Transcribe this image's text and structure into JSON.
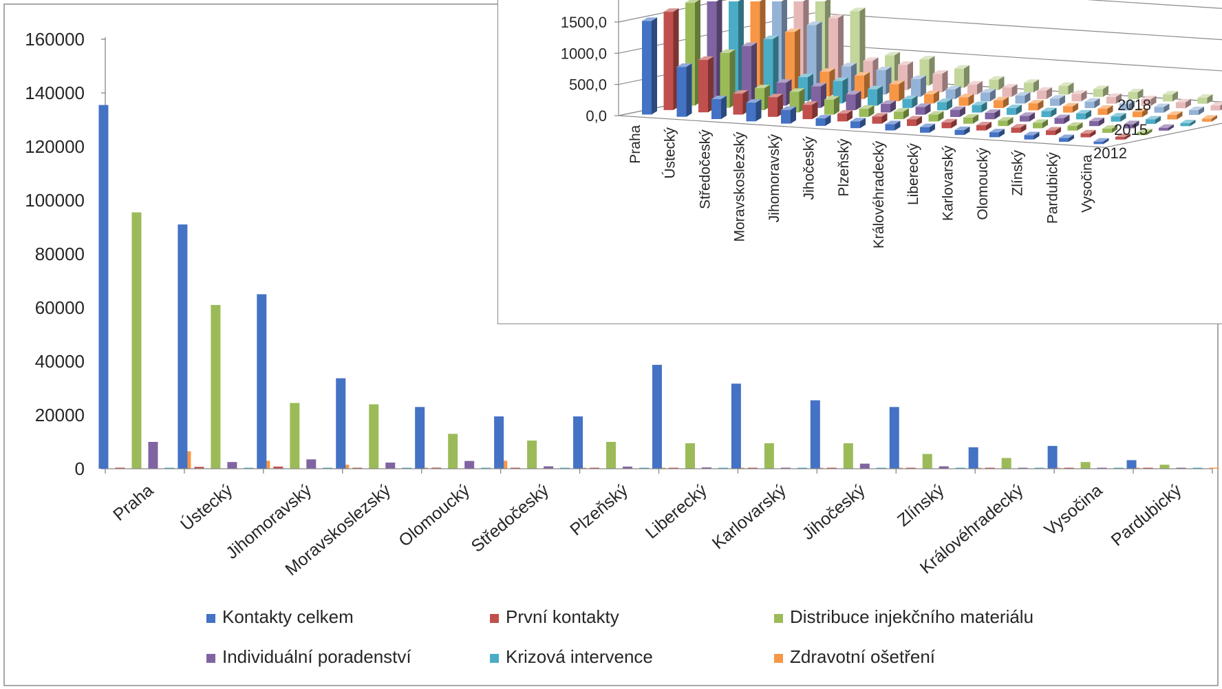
{
  "chart_data": [
    {
      "type": "bar",
      "title": "",
      "xlabel": "",
      "ylabel": "",
      "ylim": [
        0,
        160000
      ],
      "yticks": [
        0,
        20000,
        40000,
        60000,
        80000,
        100000,
        120000,
        140000,
        160000
      ],
      "grid": false,
      "legend_position": "bottom",
      "categories": [
        "Praha",
        "Ústecký",
        "Jihomoravský",
        "Moravskoslezský",
        "Olomoucký",
        "Středočeský",
        "Plzeňský",
        "Liberecký",
        "Karlovarský",
        "Jihočeský",
        "Zlínský",
        "Královéhradecký",
        "Vysočina",
        "Pardubický"
      ],
      "series": [
        {
          "name": "Kontakty celkem",
          "color": "#4472c4",
          "values": [
            135500,
            91000,
            65000,
            33700,
            23000,
            19500,
            19500,
            38700,
            31700,
            25500,
            23000,
            8000,
            8500,
            3200
          ]
        },
        {
          "name": "První kontakty",
          "color": "#c0504d",
          "values": [
            400,
            700,
            800,
            300,
            400,
            300,
            300,
            300,
            300,
            300,
            300,
            200,
            200,
            200
          ]
        },
        {
          "name": "Distribuce injekčního materiálu",
          "color": "#9bbb59",
          "values": [
            95500,
            61000,
            24500,
            24000,
            13000,
            10500,
            10000,
            9500,
            9500,
            9500,
            5500,
            4000,
            2500,
            1500
          ]
        },
        {
          "name": "Individuální poradenství",
          "color": "#8064a2",
          "values": [
            10000,
            2500,
            3500,
            2300,
            2900,
            900,
            800,
            500,
            400,
            1900,
            900,
            300,
            300,
            300
          ]
        },
        {
          "name": "Krizová intervence",
          "color": "#4bacc6",
          "values": [
            300,
            200,
            200,
            200,
            200,
            100,
            100,
            100,
            100,
            100,
            100,
            100,
            100,
            100
          ]
        },
        {
          "name": "Zdravotní ošetření",
          "color": "#f79646",
          "values": [
            6500,
            3000,
            1500,
            400,
            3000,
            300,
            300,
            300,
            300,
            300,
            300,
            200,
            200,
            200
          ]
        }
      ]
    },
    {
      "type": "bar",
      "variant": "3d-clustered",
      "title": "",
      "ylim": [
        0,
        1500
      ],
      "yticks": [
        "0,0",
        "500,0",
        "1000,0",
        "1500,0"
      ],
      "categories": [
        "Praha",
        "Ústecký",
        "Středočeský",
        "Moravskoslezský",
        "Jihomoravský",
        "Jihočeský",
        "Plzeňský",
        "Královéhradecký",
        "Liberecký",
        "Karlovarský",
        "Olomoucký",
        "Zlínský",
        "Pardubický",
        "Vysočina"
      ],
      "depth_labels": [
        "2018",
        "2015",
        "2012"
      ],
      "colors": [
        "#4472c4",
        "#c0504d",
        "#9bbb59",
        "#8064a2",
        "#4bacc6",
        "#f79646",
        "#95b3d7",
        "#e6b9b8",
        "#c3d69b"
      ],
      "front_values": [
        1500,
        800,
        320,
        300,
        220,
        120,
        110,
        100,
        90,
        80,
        80,
        70,
        60,
        40
      ]
    }
  ]
}
